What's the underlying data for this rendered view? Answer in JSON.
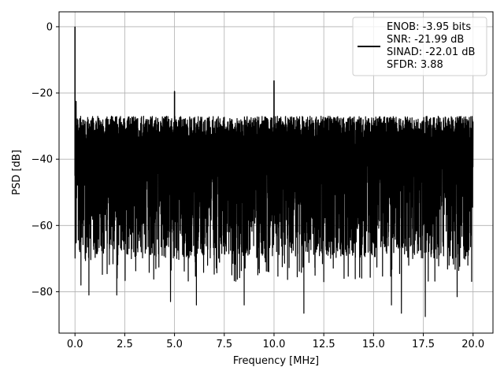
{
  "chart_data": {
    "type": "line",
    "title": "",
    "xlabel": "Frequency [MHz]",
    "ylabel": "PSD [dB]",
    "xlim": [
      -0.8,
      21.0
    ],
    "ylim": [
      -92.5,
      4.5
    ],
    "xticks": [
      0.0,
      2.5,
      5.0,
      7.5,
      10.0,
      12.5,
      15.0,
      17.5,
      20.0
    ],
    "xtick_labels": [
      "0.0",
      "2.5",
      "5.0",
      "7.5",
      "10.0",
      "12.5",
      "15.0",
      "17.5",
      "20.0"
    ],
    "yticks": [
      0,
      -20,
      -40,
      -60,
      -80
    ],
    "ytick_labels": [
      "0",
      "−20",
      "−40",
      "−60",
      "−80"
    ],
    "grid": true,
    "legend_position": "top-right",
    "legend_lines": [
      "ENOB: -3.95 bits",
      "SNR: -21.99 dB",
      "SINAD: -22.01 dB",
      "SFDR: 3.88"
    ],
    "series": [
      {
        "color": "#000000",
        "x_range": [
          0.0,
          20.0
        ],
        "noise_upper_db": -27,
        "noise_lower_db": -70,
        "noise_dip_min_db": -87.5,
        "peaks": [
          {
            "x": 0.0,
            "y": 0.0
          },
          {
            "x": 0.05,
            "y": -22.5
          },
          {
            "x": 5.0,
            "y": -19.5
          },
          {
            "x": 10.0,
            "y": -16.3
          }
        ],
        "dips": [
          {
            "x": 0.3,
            "y": -78
          },
          {
            "x": 0.7,
            "y": -81
          },
          {
            "x": 2.1,
            "y": -81
          },
          {
            "x": 4.8,
            "y": -83
          },
          {
            "x": 6.1,
            "y": -84
          },
          {
            "x": 8.5,
            "y": -84
          },
          {
            "x": 11.5,
            "y": -86.5
          },
          {
            "x": 15.9,
            "y": -84
          },
          {
            "x": 16.4,
            "y": -86.5
          },
          {
            "x": 17.6,
            "y": -87.5
          },
          {
            "x": 19.2,
            "y": -81.5
          }
        ]
      }
    ]
  }
}
